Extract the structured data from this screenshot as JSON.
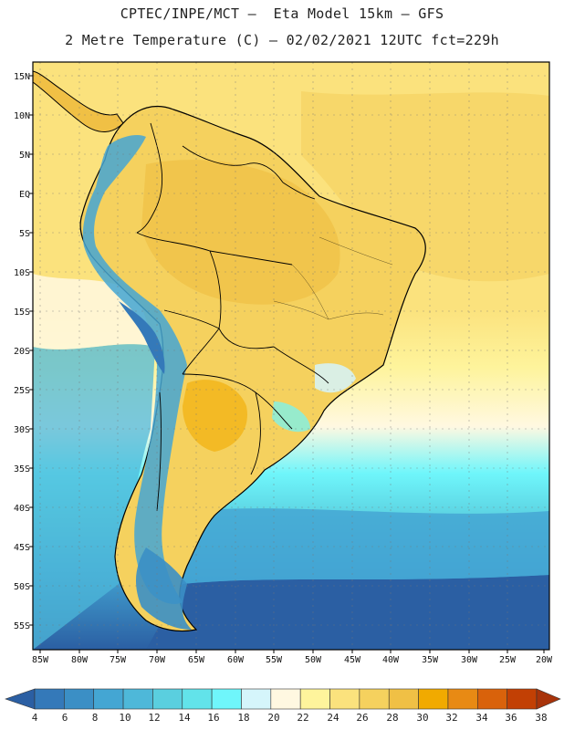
{
  "header": {
    "line1": "CPTEC/INPE/MCT —  Eta Model 15km — GFS",
    "line2": "2 Metre Temperature (C) — 02/02/2021 12UTC fct=229h"
  },
  "axes": {
    "lat_labels": [
      "15N",
      "10N",
      "5N",
      "EQ",
      "5S",
      "10S",
      "15S",
      "20S",
      "25S",
      "30S",
      "35S",
      "40S",
      "45S",
      "50S",
      "55S"
    ],
    "lon_labels": [
      "85W",
      "80W",
      "75W",
      "70W",
      "65W",
      "60W",
      "55W",
      "50W",
      "45W",
      "40W",
      "35W",
      "30W",
      "25W",
      "20W"
    ]
  },
  "legend": {
    "labels": [
      "4",
      "6",
      "8",
      "10",
      "12",
      "14",
      "16",
      "18",
      "20",
      "22",
      "24",
      "26",
      "28",
      "30",
      "32",
      "34",
      "36",
      "38"
    ],
    "colors": [
      "#2b5fa3",
      "#3479b9",
      "#3b8fc5",
      "#44a6d3",
      "#4eb8d9",
      "#5acfdf",
      "#62e3ea",
      "#6ff6fb",
      "#d5f5fb",
      "#fff8e1",
      "#fef49c",
      "#fbe27d",
      "#f5d15e",
      "#f0c045",
      "#f1aa00",
      "#e88a14",
      "#d9620b",
      "#c24004",
      "#a8330a"
    ]
  },
  "chart_data": {
    "type": "heatmap",
    "variable": "2 Metre Temperature (C)",
    "model": "Eta Model 15km - GFS",
    "date": "02/02/2021 12UTC",
    "forecast": "fct=229h",
    "lon_range": [
      -86,
      -20
    ],
    "lat_range": [
      -57,
      17
    ],
    "color_levels": [
      4,
      6,
      8,
      10,
      12,
      14,
      16,
      18,
      20,
      22,
      24,
      26,
      28,
      30,
      32,
      34,
      36,
      38
    ]
  }
}
